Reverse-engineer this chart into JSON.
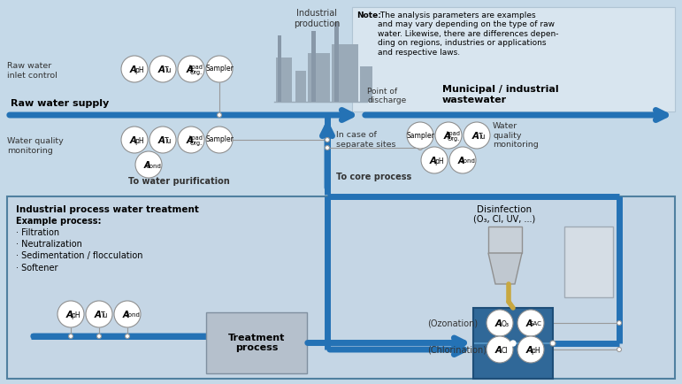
{
  "bg_color": "#c5d9e8",
  "note_box_color": "#dce8f0",
  "inner_box_color": "#c8d8e8",
  "blue_pipe": "#1e5f96",
  "blue_pipe2": "#2472b5",
  "gray_factory": "#9aaab8",
  "gray_box": "#b0bcc8",
  "tank_blue": "#2e6da0",
  "tank_light": "#5a8fba",
  "gold_pipe": "#c8a840",
  "note_text_bold": "Note:",
  "note_text_rest": " The analysis parameters are examples\nand may vary depending on the type of raw\nwater. Likewise, there are differences depen-\nding on regions, industries or applications\nand respective laws.",
  "industrial_prod_label": "Industrial\nproduction",
  "raw_water_inlet": "Raw water\ninlet control",
  "raw_water_supply": "Raw water supply",
  "water_quality_mon_left": "Water quality\nmonitoring",
  "to_water_purif": "To water purification",
  "point_discharge": "Point of\ndischarge",
  "municipal_ww": "Municipal / industrial\nwastewater",
  "in_case": "In case of\nseparate sites",
  "to_core": "To core process",
  "wq_mon_right": "Water\nquality\nmonitoring",
  "ipwt_title": "Industrial process water treatment",
  "example_label": "Example process:",
  "example_items": "· Filtration\n· Neutralization\n· Sedimentation / flocculation\n· Softener",
  "disinfection_label": "Disinfection",
  "disinfection_sub": "(O₃, Cl, UV, ...)",
  "ozonation": "(Ozonation)",
  "chlorination": "(Chlorination)",
  "treatment_process": "Treatment\nprocess"
}
